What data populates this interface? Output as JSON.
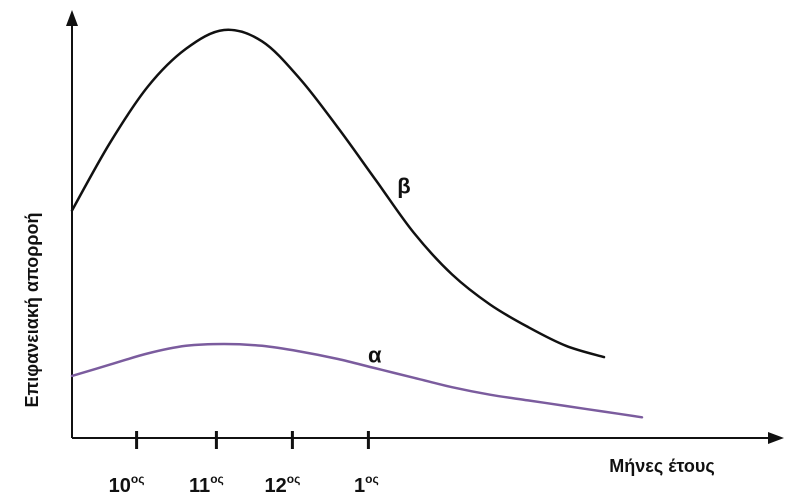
{
  "chart_data": {
    "type": "line",
    "ylabel": "Επιφανειακή απορροή",
    "xlabel": "Μήνες έτους",
    "categories": [
      "10",
      "11",
      "12",
      "1"
    ],
    "category_suffix": "ος",
    "grid": false,
    "legend": "none",
    "series": [
      {
        "name": "β",
        "color": "#111111",
        "x": [
          0.0,
          0.5,
          1.0,
          1.5,
          2.0,
          2.5,
          3.0,
          3.5,
          4.0,
          4.5,
          5.0,
          5.5,
          6.0,
          6.5,
          7.0
        ],
        "y": [
          0.52,
          0.7,
          0.85,
          0.95,
          1.0,
          0.97,
          0.87,
          0.74,
          0.6,
          0.46,
          0.35,
          0.27,
          0.21,
          0.16,
          0.13
        ]
      },
      {
        "name": "α",
        "color": "#7b5c9e",
        "x": [
          0.0,
          0.5,
          1.0,
          1.5,
          2.0,
          2.5,
          3.0,
          3.5,
          4.0,
          4.5,
          5.0,
          5.5,
          6.0,
          6.5,
          7.0,
          7.5
        ],
        "y": [
          0.08,
          0.11,
          0.14,
          0.16,
          0.165,
          0.16,
          0.145,
          0.125,
          0.1,
          0.075,
          0.05,
          0.03,
          0.015,
          0.0,
          -0.015,
          -0.03
        ]
      }
    ]
  }
}
